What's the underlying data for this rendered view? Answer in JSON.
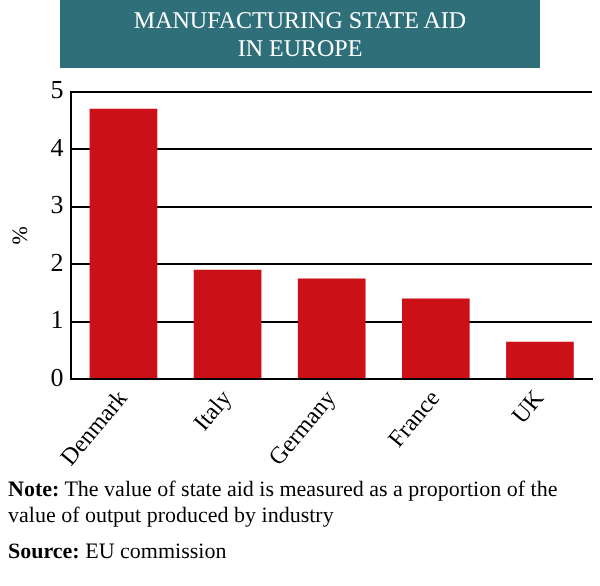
{
  "chart_data": {
    "type": "bar",
    "title": "MANUFACTURING STATE AID\nIN EUROPE",
    "ylabel": "%",
    "categories": [
      "Denmark",
      "Italy",
      "Germany",
      "France",
      "UK"
    ],
    "values": [
      4.7,
      1.9,
      1.75,
      1.4,
      0.65
    ],
    "color": "#cc1018",
    "ylim": [
      0,
      5
    ],
    "yticks": [
      0,
      1,
      2,
      3,
      4,
      5
    ],
    "grid": "y",
    "legend": false,
    "annotations": [
      "Note: The value of state aid is measured as a proportion of the value of output produced by industry",
      "Source: EU commission"
    ]
  }
}
